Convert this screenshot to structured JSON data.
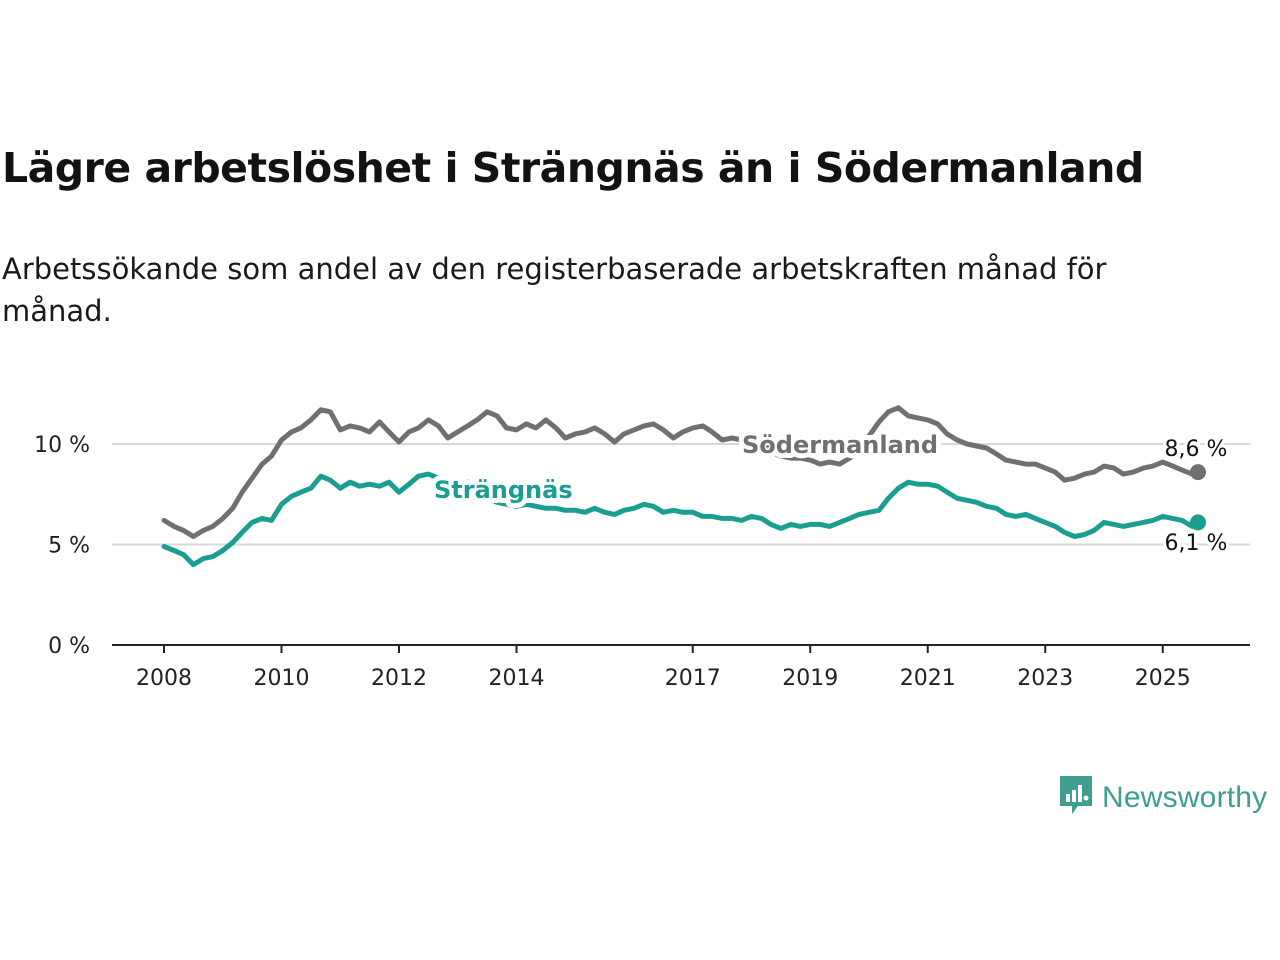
{
  "title": "Lägre arbetslöshet i Strängnäs än i Södermanland",
  "subtitle": "Arbetssökande som andel av den registerbaserade arbetskraften månad för månad.",
  "brand": {
    "name": "Newsworthy",
    "color": "#3d9e91"
  },
  "chart_data": {
    "type": "line",
    "xlabel": "",
    "ylabel": "",
    "xlim": [
      2008,
      2026.5
    ],
    "ylim": [
      0,
      12
    ],
    "y_ticks": [
      0,
      5,
      10
    ],
    "y_tick_labels": [
      "0 %",
      "5 %",
      "10 %"
    ],
    "x_ticks": [
      2008,
      2010,
      2012,
      2014,
      2017,
      2019,
      2021,
      2023,
      2025
    ],
    "x_tick_labels": [
      "2008",
      "2010",
      "2012",
      "2014",
      "2017",
      "2019",
      "2021",
      "2023",
      "2025"
    ],
    "grid": "horizontal",
    "legend": "inline labels",
    "series": [
      {
        "name": "Södermanland",
        "color": "#707070",
        "end_label": "8,6 %",
        "points": [
          [
            2008.0,
            6.2
          ],
          [
            2008.17,
            5.9
          ],
          [
            2008.33,
            5.7
          ],
          [
            2008.5,
            5.4
          ],
          [
            2008.67,
            5.7
          ],
          [
            2008.83,
            5.9
          ],
          [
            2009.0,
            6.3
          ],
          [
            2009.17,
            6.8
          ],
          [
            2009.33,
            7.6
          ],
          [
            2009.5,
            8.3
          ],
          [
            2009.67,
            9.0
          ],
          [
            2009.83,
            9.4
          ],
          [
            2010.0,
            10.2
          ],
          [
            2010.17,
            10.6
          ],
          [
            2010.33,
            10.8
          ],
          [
            2010.5,
            11.2
          ],
          [
            2010.67,
            11.7
          ],
          [
            2010.83,
            11.6
          ],
          [
            2011.0,
            10.7
          ],
          [
            2011.17,
            10.9
          ],
          [
            2011.33,
            10.8
          ],
          [
            2011.5,
            10.6
          ],
          [
            2011.67,
            11.1
          ],
          [
            2011.83,
            10.6
          ],
          [
            2012.0,
            10.1
          ],
          [
            2012.17,
            10.6
          ],
          [
            2012.33,
            10.8
          ],
          [
            2012.5,
            11.2
          ],
          [
            2012.67,
            10.9
          ],
          [
            2012.83,
            10.3
          ],
          [
            2013.0,
            10.6
          ],
          [
            2013.17,
            10.9
          ],
          [
            2013.33,
            11.2
          ],
          [
            2013.5,
            11.6
          ],
          [
            2013.67,
            11.4
          ],
          [
            2013.83,
            10.8
          ],
          [
            2014.0,
            10.7
          ],
          [
            2014.17,
            11.0
          ],
          [
            2014.33,
            10.8
          ],
          [
            2014.5,
            11.2
          ],
          [
            2014.67,
            10.8
          ],
          [
            2014.83,
            10.3
          ],
          [
            2015.0,
            10.5
          ],
          [
            2015.17,
            10.6
          ],
          [
            2015.33,
            10.8
          ],
          [
            2015.5,
            10.5
          ],
          [
            2015.67,
            10.1
          ],
          [
            2015.83,
            10.5
          ],
          [
            2016.0,
            10.7
          ],
          [
            2016.17,
            10.9
          ],
          [
            2016.33,
            11.0
          ],
          [
            2016.5,
            10.7
          ],
          [
            2016.67,
            10.3
          ],
          [
            2016.83,
            10.6
          ],
          [
            2017.0,
            10.8
          ],
          [
            2017.17,
            10.9
          ],
          [
            2017.33,
            10.6
          ],
          [
            2017.5,
            10.2
          ],
          [
            2017.67,
            10.3
          ],
          [
            2017.83,
            10.2
          ],
          [
            2018.0,
            10.0
          ],
          [
            2018.17,
            10.2
          ],
          [
            2018.33,
            9.6
          ],
          [
            2018.5,
            9.4
          ],
          [
            2018.67,
            9.3
          ],
          [
            2018.83,
            9.3
          ],
          [
            2019.0,
            9.2
          ],
          [
            2019.17,
            9.0
          ],
          [
            2019.33,
            9.1
          ],
          [
            2019.5,
            9.0
          ],
          [
            2019.67,
            9.3
          ],
          [
            2019.83,
            9.7
          ],
          [
            2020.0,
            10.4
          ],
          [
            2020.17,
            11.1
          ],
          [
            2020.33,
            11.6
          ],
          [
            2020.5,
            11.8
          ],
          [
            2020.67,
            11.4
          ],
          [
            2020.83,
            11.3
          ],
          [
            2021.0,
            11.2
          ],
          [
            2021.17,
            11.0
          ],
          [
            2021.33,
            10.5
          ],
          [
            2021.5,
            10.2
          ],
          [
            2021.67,
            10.0
          ],
          [
            2021.83,
            9.9
          ],
          [
            2022.0,
            9.8
          ],
          [
            2022.17,
            9.5
          ],
          [
            2022.33,
            9.2
          ],
          [
            2022.5,
            9.1
          ],
          [
            2022.67,
            9.0
          ],
          [
            2022.83,
            9.0
          ],
          [
            2023.0,
            8.8
          ],
          [
            2023.17,
            8.6
          ],
          [
            2023.33,
            8.2
          ],
          [
            2023.5,
            8.3
          ],
          [
            2023.67,
            8.5
          ],
          [
            2023.83,
            8.6
          ],
          [
            2024.0,
            8.9
          ],
          [
            2024.17,
            8.8
          ],
          [
            2024.33,
            8.5
          ],
          [
            2024.5,
            8.6
          ],
          [
            2024.67,
            8.8
          ],
          [
            2024.83,
            8.9
          ],
          [
            2025.0,
            9.1
          ],
          [
            2025.17,
            8.9
          ],
          [
            2025.33,
            8.7
          ],
          [
            2025.5,
            8.5
          ],
          [
            2025.6,
            8.6
          ]
        ]
      },
      {
        "name": "Strängnäs",
        "color": "#1b9e92",
        "end_label": "6,1 %",
        "points": [
          [
            2008.0,
            4.9
          ],
          [
            2008.17,
            4.7
          ],
          [
            2008.33,
            4.5
          ],
          [
            2008.5,
            4.0
          ],
          [
            2008.67,
            4.3
          ],
          [
            2008.83,
            4.4
          ],
          [
            2009.0,
            4.7
          ],
          [
            2009.17,
            5.1
          ],
          [
            2009.33,
            5.6
          ],
          [
            2009.5,
            6.1
          ],
          [
            2009.67,
            6.3
          ],
          [
            2009.83,
            6.2
          ],
          [
            2010.0,
            7.0
          ],
          [
            2010.17,
            7.4
          ],
          [
            2010.33,
            7.6
          ],
          [
            2010.5,
            7.8
          ],
          [
            2010.67,
            8.4
          ],
          [
            2010.83,
            8.2
          ],
          [
            2011.0,
            7.8
          ],
          [
            2011.17,
            8.1
          ],
          [
            2011.33,
            7.9
          ],
          [
            2011.5,
            8.0
          ],
          [
            2011.67,
            7.9
          ],
          [
            2011.83,
            8.1
          ],
          [
            2012.0,
            7.6
          ],
          [
            2012.17,
            8.0
          ],
          [
            2012.33,
            8.4
          ],
          [
            2012.5,
            8.5
          ],
          [
            2012.67,
            8.3
          ],
          [
            2012.83,
            7.6
          ],
          [
            2013.0,
            7.8
          ],
          [
            2013.17,
            8.1
          ],
          [
            2013.33,
            7.6
          ],
          [
            2013.5,
            7.3
          ],
          [
            2013.67,
            7.1
          ],
          [
            2013.83,
            7.0
          ],
          [
            2014.0,
            6.9
          ],
          [
            2014.17,
            7.0
          ],
          [
            2014.33,
            6.9
          ],
          [
            2014.5,
            6.8
          ],
          [
            2014.67,
            6.8
          ],
          [
            2014.83,
            6.7
          ],
          [
            2015.0,
            6.7
          ],
          [
            2015.17,
            6.6
          ],
          [
            2015.33,
            6.8
          ],
          [
            2015.5,
            6.6
          ],
          [
            2015.67,
            6.5
          ],
          [
            2015.83,
            6.7
          ],
          [
            2016.0,
            6.8
          ],
          [
            2016.17,
            7.0
          ],
          [
            2016.33,
            6.9
          ],
          [
            2016.5,
            6.6
          ],
          [
            2016.67,
            6.7
          ],
          [
            2016.83,
            6.6
          ],
          [
            2017.0,
            6.6
          ],
          [
            2017.17,
            6.4
          ],
          [
            2017.33,
            6.4
          ],
          [
            2017.5,
            6.3
          ],
          [
            2017.67,
            6.3
          ],
          [
            2017.83,
            6.2
          ],
          [
            2018.0,
            6.4
          ],
          [
            2018.17,
            6.3
          ],
          [
            2018.33,
            6.0
          ],
          [
            2018.5,
            5.8
          ],
          [
            2018.67,
            6.0
          ],
          [
            2018.83,
            5.9
          ],
          [
            2019.0,
            6.0
          ],
          [
            2019.17,
            6.0
          ],
          [
            2019.33,
            5.9
          ],
          [
            2019.5,
            6.1
          ],
          [
            2019.67,
            6.3
          ],
          [
            2019.83,
            6.5
          ],
          [
            2020.0,
            6.6
          ],
          [
            2020.17,
            6.7
          ],
          [
            2020.33,
            7.3
          ],
          [
            2020.5,
            7.8
          ],
          [
            2020.67,
            8.1
          ],
          [
            2020.83,
            8.0
          ],
          [
            2021.0,
            8.0
          ],
          [
            2021.17,
            7.9
          ],
          [
            2021.33,
            7.6
          ],
          [
            2021.5,
            7.3
          ],
          [
            2021.67,
            7.2
          ],
          [
            2021.83,
            7.1
          ],
          [
            2022.0,
            6.9
          ],
          [
            2022.17,
            6.8
          ],
          [
            2022.33,
            6.5
          ],
          [
            2022.5,
            6.4
          ],
          [
            2022.67,
            6.5
          ],
          [
            2022.83,
            6.3
          ],
          [
            2023.0,
            6.1
          ],
          [
            2023.17,
            5.9
          ],
          [
            2023.33,
            5.6
          ],
          [
            2023.5,
            5.4
          ],
          [
            2023.67,
            5.5
          ],
          [
            2023.83,
            5.7
          ],
          [
            2024.0,
            6.1
          ],
          [
            2024.17,
            6.0
          ],
          [
            2024.33,
            5.9
          ],
          [
            2024.5,
            6.0
          ],
          [
            2024.67,
            6.1
          ],
          [
            2024.83,
            6.2
          ],
          [
            2025.0,
            6.4
          ],
          [
            2025.17,
            6.3
          ],
          [
            2025.33,
            6.2
          ],
          [
            2025.5,
            5.9
          ],
          [
            2025.6,
            6.1
          ]
        ]
      }
    ]
  }
}
